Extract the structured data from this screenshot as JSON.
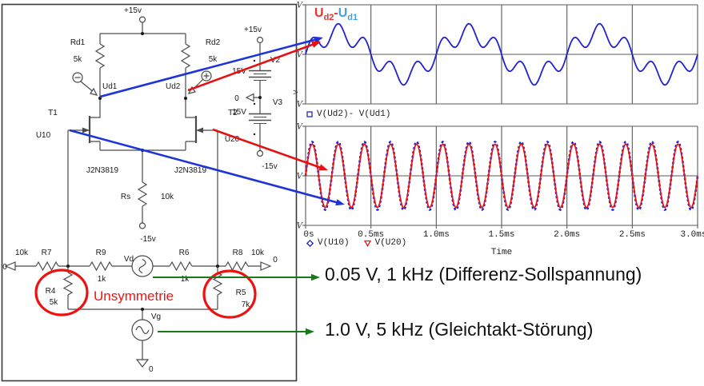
{
  "plots": {
    "selected_marker": ">"
  },
  "plot_title": {
    "u1": "U",
    "sub1": "d2",
    "minus": "-",
    "u2": "U",
    "sub2": "d1"
  },
  "annotations": {
    "diff": "0.05 V, 1 kHz (Differenz-Sollspannung)",
    "common": "1.0 V, 5 kHz (Gleichtakt-Störung)"
  },
  "circuit": {
    "labels": {
      "vplus_top": "+15v",
      "rd1": "Rd1",
      "rd1_val": "5k",
      "rd2": "Rd2",
      "rd2_val": "5k",
      "ud1": "Ud1",
      "ud2": "Ud2",
      "t1": "T1",
      "t2": "T2",
      "u10": "U10",
      "u20": "U20",
      "jfet1": "J2N3819",
      "jfet2": "J2N3819",
      "rs": "Rs",
      "rs_val": "10k",
      "vminus_rs": "-15v",
      "vplus_bat": "+15v",
      "v2": "V2",
      "v2_val": "15V",
      "bat_gnd": "0",
      "v3": "V3",
      "v3_val": "15V",
      "vminus_bat": "-15v",
      "left_net0": "0",
      "r7_ext_val": "10k",
      "r7": "R7",
      "r9": "R9",
      "r9_val": "1k",
      "vd": "Vd",
      "r6": "R6",
      "r6_val": "1k",
      "r8": "R8",
      "r8_ext_val": "10k",
      "right_net0": "0",
      "r4": "R4",
      "r4_val": "5k",
      "r5": "R5",
      "r5_val": "7k",
      "unsymmetrie": "Unsymmetrie",
      "vg": "Vg",
      "vg_gnd": "0"
    }
  },
  "chart_data": [
    {
      "type": "line",
      "title": "Ud2-Ud1",
      "x_unit": "ms",
      "x_range_ms": [
        0,
        3
      ],
      "x_gridlines_ms": [
        0,
        0.5,
        1.0,
        1.5,
        2.0,
        2.5,
        3.0
      ],
      "y_range_est": [
        -1.7,
        1.7
      ],
      "y_tick_labels": [
        "V",
        "V",
        "V"
      ],
      "y_labels_note": "y tick numbers cropped by schematic; only unit letter V visible",
      "axis_marker": ">",
      "grid": "vertical gridlines at each 0.5ms, horizontal lines at top/zero/bottom",
      "series": [
        {
          "name": "V(Ud2)- V(Ud1)",
          "color": "#2323cd",
          "style": "solid",
          "marker": "square",
          "signal_components": [
            {
              "freq_hz": 1000,
              "amp": 0.72,
              "phase_deg": 0
            },
            {
              "freq_hz": 5000,
              "amp": 0.33,
              "phase_deg": 0
            }
          ]
        }
      ]
    },
    {
      "type": "line",
      "x_unit": "ms",
      "x_range_ms": [
        0,
        3
      ],
      "x_gridlines_ms": [
        0,
        0.5,
        1.0,
        1.5,
        2.0,
        2.5,
        3.0
      ],
      "x_tick_labels": [
        "0s",
        "0.5ms",
        "1.0ms",
        "1.5ms",
        "2.0ms",
        "2.5ms",
        "3.0ms"
      ],
      "xlabel": "Time",
      "y_range_est": [
        -1.5,
        1.5
      ],
      "y_tick_labels": [
        "V",
        "V",
        "V"
      ],
      "series": [
        {
          "name": "V(U10)",
          "color": "#2323cd",
          "style": "dashed",
          "marker": "diamond",
          "signal_components": [
            {
              "freq_hz": 5000,
              "amp": 1.03,
              "phase_deg": 0
            }
          ]
        },
        {
          "name": "V(U20)",
          "color": "#e81414",
          "style": "solid",
          "marker": "triangle-down",
          "signal_components": [
            {
              "freq_hz": 5000,
              "amp": 0.96,
              "phase_deg": 0
            }
          ]
        }
      ]
    }
  ]
}
